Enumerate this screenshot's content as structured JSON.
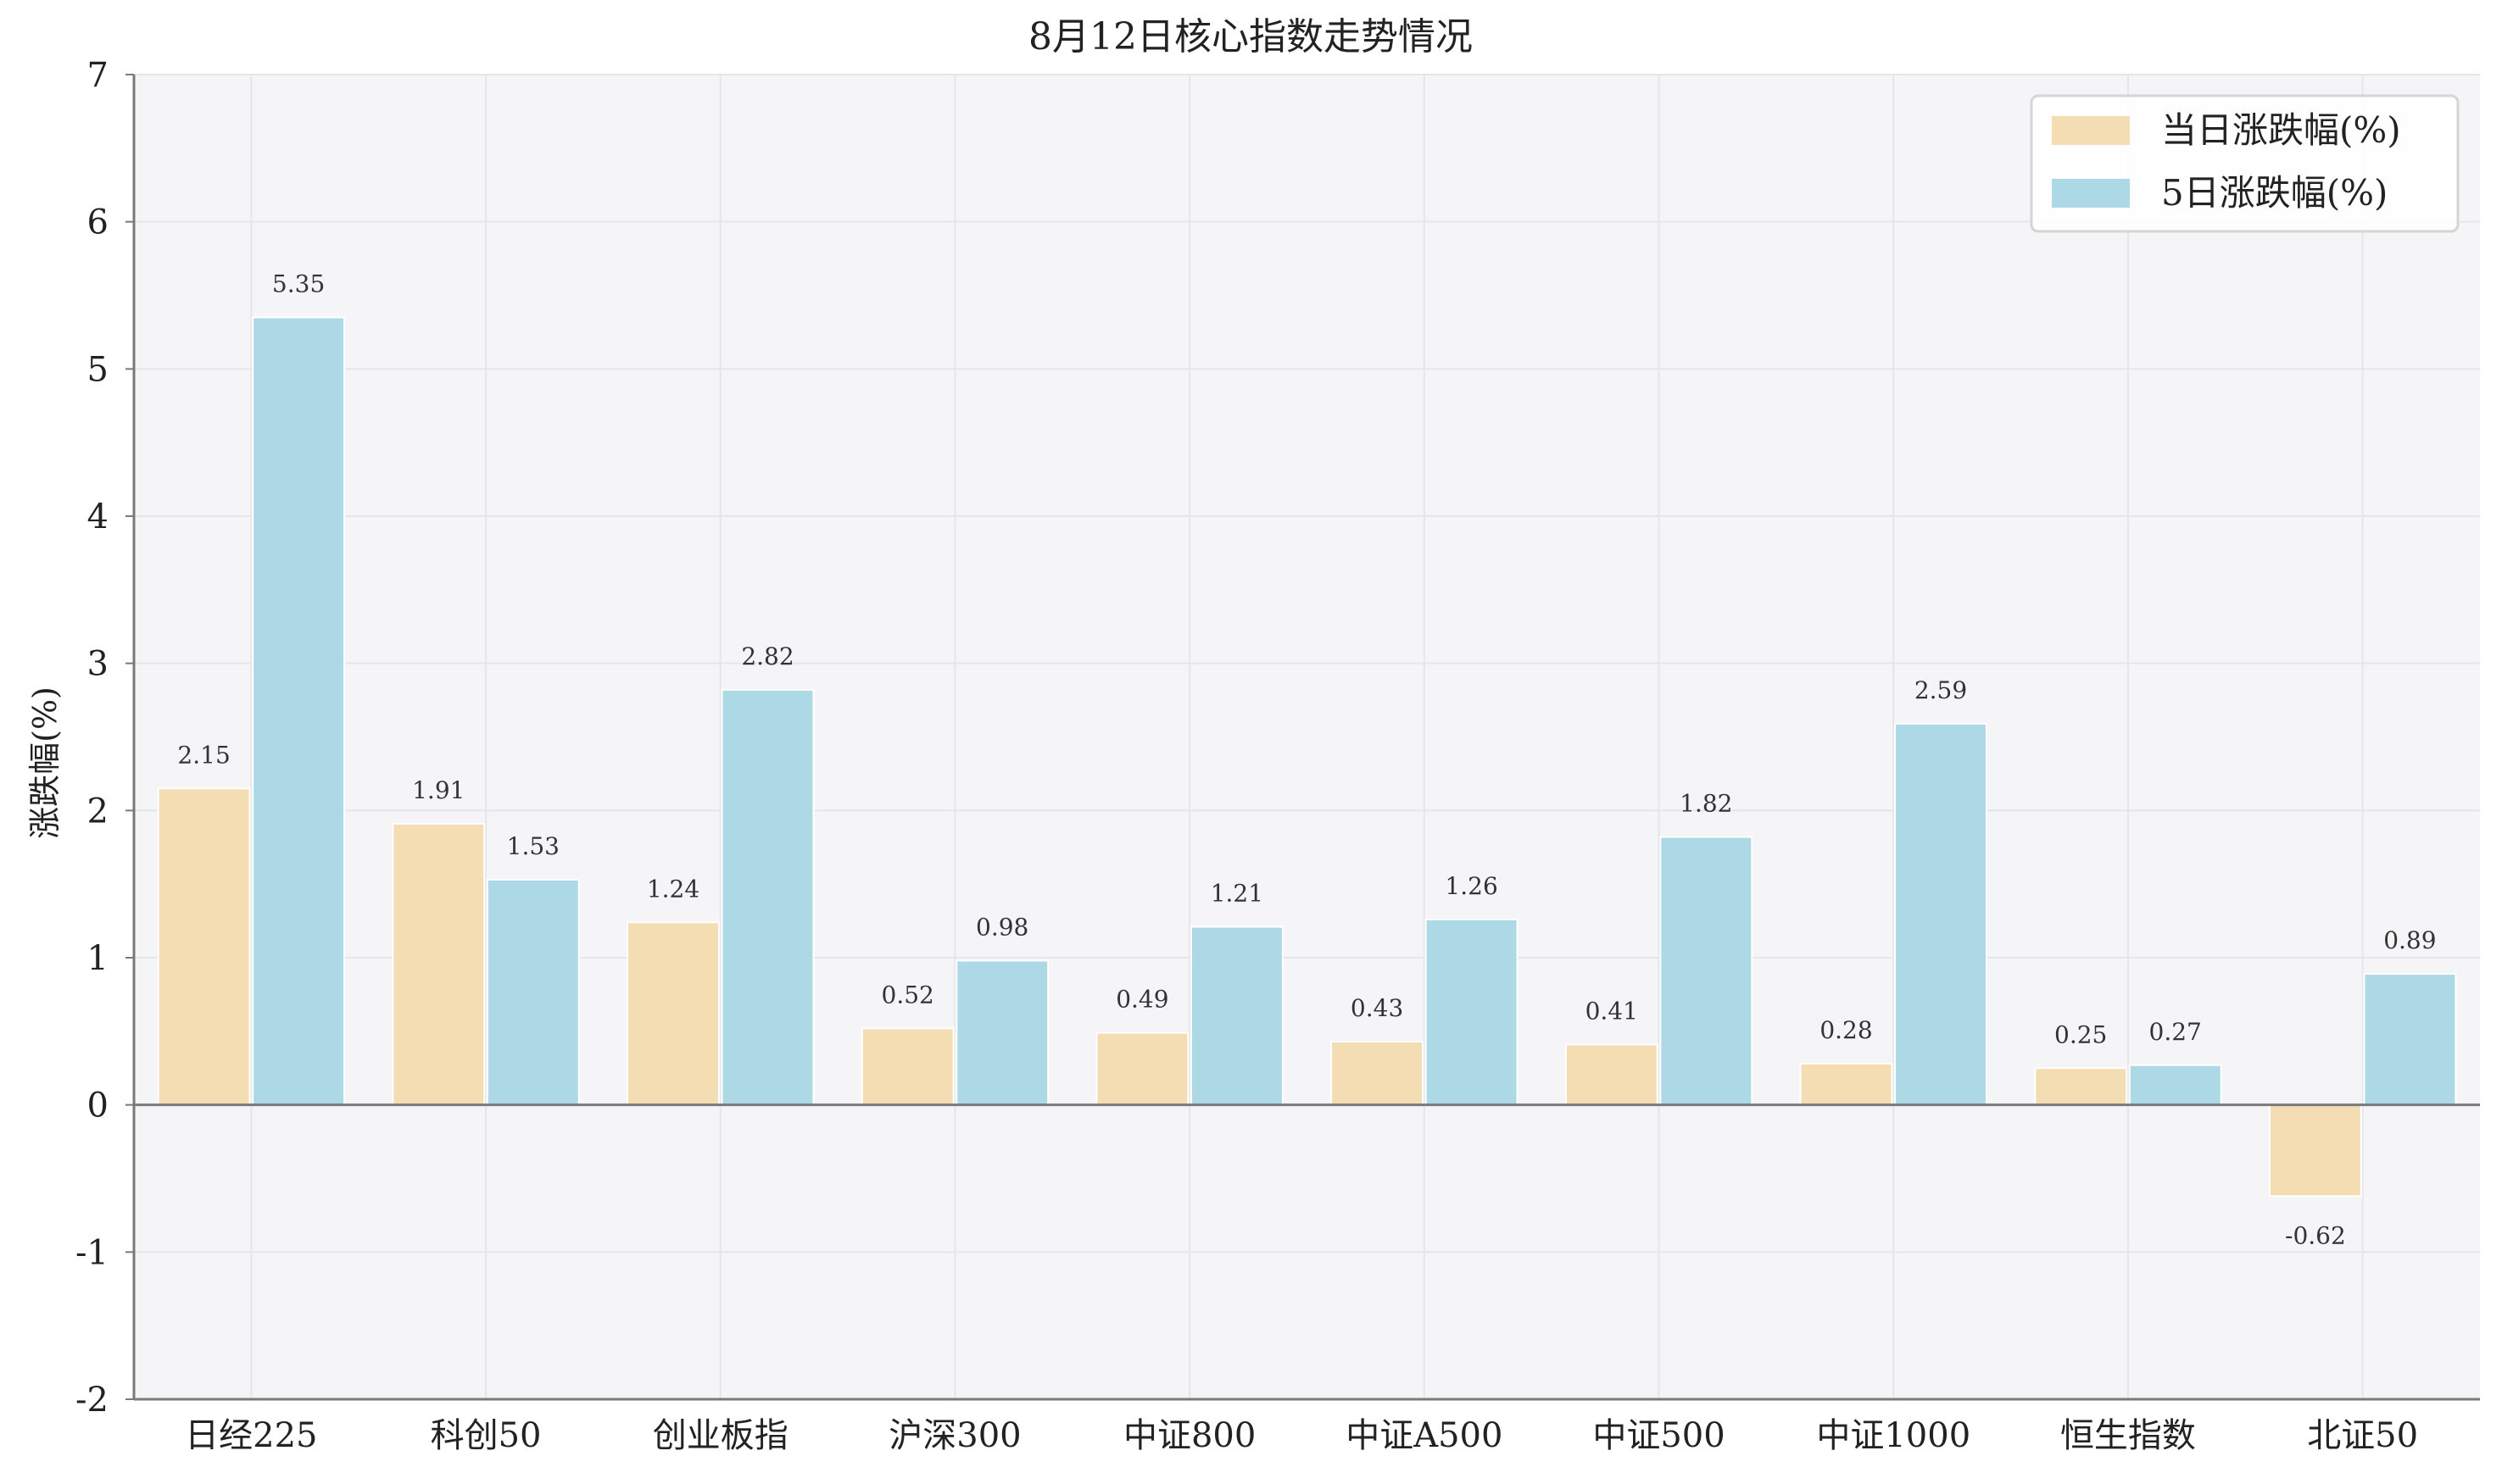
{
  "chart_data": {
    "type": "bar",
    "title": "8月12日核心指数走势情况",
    "xlabel": "",
    "ylabel": "涨跌幅(%)",
    "ylim": [
      -2,
      7
    ],
    "yticks": [
      -2,
      -1,
      0,
      1,
      2,
      3,
      4,
      5,
      6,
      7
    ],
    "grid": true,
    "legend_position": "top-right",
    "categories": [
      "日经225",
      "科创50",
      "创业板指",
      "沪深300",
      "中证800",
      "中证A500",
      "中证500",
      "中证1000",
      "恒生指数",
      "北证50"
    ],
    "series": [
      {
        "name": "当日涨跌幅(%)",
        "color": "#F5DDB3",
        "values": [
          2.15,
          1.91,
          1.24,
          0.52,
          0.49,
          0.43,
          0.41,
          0.28,
          0.25,
          -0.62
        ]
      },
      {
        "name": "5日涨跌幅(%)",
        "color": "#ADD8E6",
        "values": [
          5.35,
          1.53,
          2.82,
          0.98,
          1.21,
          1.26,
          1.82,
          2.59,
          0.27,
          0.89
        ]
      }
    ],
    "colors": {
      "plot_background": "#F5F4F7",
      "grid": "#E6E5EA",
      "axis": "#7A7A7A"
    }
  }
}
